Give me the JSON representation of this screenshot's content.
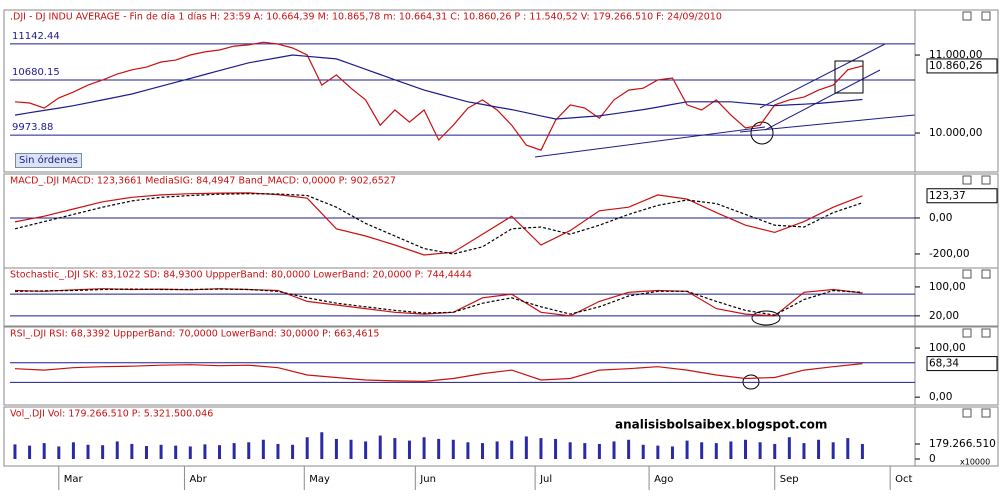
{
  "button": "Sin órdenes",
  "watermark": "analisisbolsaibex.blogspot.com",
  "chart_data": [
    {
      "type": "line",
      "title": ".DJI - DJ INDU AVERAGE - Fin de día 1 días H: 23:59  A: 10.664,39  M: 10.865,78  m: 10.664,31  C: 10.860,26  P : 11.540,52  V: 179.266.510  F: 24/09/2010",
      "x": [
        0,
        1,
        2,
        3,
        4,
        5,
        6,
        7,
        8,
        9,
        10,
        11,
        12,
        13,
        14,
        15,
        16,
        17,
        18,
        19,
        20,
        21,
        22,
        23,
        24,
        25,
        26,
        27,
        28,
        29,
        30,
        31,
        32,
        33,
        34,
        35,
        36,
        37,
        38,
        39,
        40,
        41,
        42,
        43,
        44,
        45,
        46,
        47,
        48,
        49,
        50,
        51,
        52,
        53,
        54,
        55,
        56,
        57,
        58
      ],
      "xlim": [
        -0.34,
        61.6
      ],
      "ylim": [
        9526,
        11449
      ],
      "yticks": [
        {
          "value": 11000,
          "label": "11.000,00"
        },
        {
          "value": 10000,
          "label": "10.000,00"
        }
      ],
      "reference_lines": [
        11142.44,
        10680.15,
        9973.88
      ],
      "reference_color": "#1c1c8c",
      "last_label": "10.860,26",
      "series": [
        {
          "color": "#cc1010",
          "values": [
            10400,
            10385,
            10320,
            10450,
            10525,
            10615,
            10680,
            10755,
            10810,
            10845,
            10910,
            10935,
            11000,
            11040,
            11065,
            11115,
            11130,
            11165,
            11140,
            11090,
            11000,
            10615,
            10745,
            10575,
            10425,
            10100,
            10295,
            10140,
            10295,
            9910,
            10100,
            10320,
            10425,
            10295,
            10100,
            9845,
            9780,
            10165,
            10360,
            10320,
            10190,
            10425,
            10550,
            10575,
            10680,
            10705,
            10360,
            10295,
            10425,
            10230,
            10065,
            10100,
            10360,
            10425,
            10460,
            10550,
            10615,
            10810,
            10860.26
          ]
        },
        {
          "color": "#1c1c8c",
          "values": [
            10230,
            10260,
            10290,
            10320,
            10350,
            10387,
            10425,
            10462,
            10500,
            10550,
            10600,
            10650,
            10700,
            10750,
            10800,
            10850,
            10900,
            10933,
            10967,
            11000,
            10983,
            10967,
            10950,
            10883,
            10817,
            10750,
            10683,
            10617,
            10550,
            10500,
            10450,
            10400,
            10367,
            10333,
            10300,
            10260,
            10220,
            10180,
            10193,
            10207,
            10220,
            10247,
            10273,
            10300,
            10333,
            10367,
            10400,
            10400,
            10400,
            10400,
            10383,
            10367,
            10350,
            10360,
            10370,
            10380,
            10397,
            10413,
            10430
          ]
        }
      ]
    },
    {
      "type": "line",
      "title": "MACD_.DJI MACD: 123,3661  MediaSIG: 84,4947  Band_MACD: 0,0000  P: 902,6527",
      "x": [
        0,
        2,
        4,
        6,
        8,
        10,
        12,
        14,
        16,
        18,
        20,
        22,
        24,
        26,
        28,
        30,
        32,
        34,
        36,
        38,
        40,
        42,
        44,
        46,
        48,
        50,
        52,
        54,
        56,
        58
      ],
      "xlim": [
        -0.34,
        61.6
      ],
      "ylim": [
        -278,
        222
      ],
      "yticks": [
        {
          "value": 0,
          "label": "0,00"
        },
        {
          "value": -200,
          "label": "-200,00"
        }
      ],
      "bands": [
        0
      ],
      "band_color": "#1c1c8c",
      "last_label": "123,37",
      "series": [
        {
          "color": "#cc1010",
          "values": [
            -22,
            10,
            50,
            90,
            115,
            128,
            135,
            138,
            139,
            130,
            110,
            -60,
            -100,
            -150,
            -206,
            -190,
            -90,
            10,
            -150,
            -70,
            40,
            60,
            128,
            105,
            30,
            -40,
            -80,
            -20,
            60,
            123.37
          ]
        },
        {
          "color": "#000000",
          "dash": true,
          "values": [
            -60,
            -20,
            20,
            60,
            95,
            115,
            125,
            132,
            135,
            133,
            125,
            60,
            -30,
            -100,
            -170,
            -200,
            -160,
            -60,
            -50,
            -90,
            -40,
            20,
            70,
            100,
            80,
            20,
            -40,
            -50,
            30,
            84.49
          ]
        }
      ]
    },
    {
      "type": "line",
      "title": "Stochastic_.DJI SK: 83,1022  SD: 84,9300  UppperBand: 80,0000  LowerBand: 20,0000  P: 744,4444",
      "x": [
        0,
        2,
        4,
        6,
        8,
        10,
        12,
        14,
        16,
        18,
        20,
        22,
        24,
        26,
        28,
        30,
        32,
        34,
        36,
        38,
        40,
        42,
        44,
        46,
        48,
        50,
        52,
        54,
        56,
        58
      ],
      "xlim": [
        -0.34,
        61.6
      ],
      "ylim": [
        -8,
        144
      ],
      "yticks": [
        {
          "value": 100,
          "label": "100,00"
        },
        {
          "value": 20,
          "label": "20,00"
        }
      ],
      "bands": [
        80,
        20
      ],
      "band_color": "#1c1c8c",
      "series": [
        {
          "color": "#cc1010",
          "values": [
            90,
            88,
            92,
            95,
            93,
            94,
            92,
            95,
            93,
            90,
            60,
            50,
            40,
            30,
            25,
            30,
            70,
            80,
            30,
            20,
            60,
            85,
            90,
            88,
            40,
            25,
            20,
            85,
            93,
            83.1
          ]
        },
        {
          "color": "#000000",
          "dash": true,
          "values": [
            88,
            89,
            90,
            93,
            94,
            93,
            93,
            94,
            93,
            88,
            70,
            55,
            45,
            35,
            28,
            30,
            55,
            70,
            45,
            25,
            45,
            75,
            88,
            88,
            60,
            35,
            22,
            65,
            90,
            84.93
          ]
        }
      ]
    },
    {
      "type": "line",
      "title": "RSI_.DJI RSI: 68,3392  UppperBand: 70,0000  LowerBand: 30,0000  P: 663,4615",
      "x": [
        0,
        2,
        4,
        6,
        8,
        10,
        12,
        14,
        16,
        18,
        20,
        22,
        24,
        26,
        28,
        30,
        32,
        34,
        36,
        38,
        40,
        42,
        44,
        46,
        48,
        50,
        52,
        54,
        56,
        58
      ],
      "xlim": [
        -0.34,
        61.6
      ],
      "ylim": [
        -16,
        134.7
      ],
      "yticks": [
        {
          "value": 100,
          "label": "100,00"
        },
        {
          "value": 0,
          "label": "0,00"
        }
      ],
      "bands": [
        70,
        30
      ],
      "band_color": "#1c1c8c",
      "last_label": "68,34",
      "series": [
        {
          "color": "#cc1010",
          "values": [
            58,
            55,
            60,
            62,
            63,
            65,
            66,
            64,
            65,
            60,
            45,
            40,
            35,
            33,
            32,
            38,
            48,
            55,
            35,
            38,
            55,
            58,
            62,
            55,
            45,
            38,
            40,
            55,
            62,
            68.34
          ]
        }
      ]
    },
    {
      "type": "bar",
      "title": "Vol_.DJI Vol: 179.266.510  P: 5.321.500.046",
      "x": [
        0,
        1,
        2,
        3,
        4,
        5,
        6,
        7,
        8,
        9,
        10,
        11,
        12,
        13,
        14,
        15,
        16,
        17,
        18,
        19,
        20,
        21,
        22,
        23,
        24,
        25,
        26,
        27,
        28,
        29,
        30,
        31,
        32,
        33,
        34,
        35,
        36,
        37,
        38,
        39,
        40,
        41,
        42,
        43,
        44,
        45,
        46,
        47,
        48,
        49,
        50,
        51,
        52,
        53,
        54,
        55,
        56,
        57,
        58
      ],
      "xlim": [
        -0.34,
        61.6
      ],
      "ylim": [
        0,
        610000000
      ],
      "yticks": [
        0,
        {
          "value": 179266510,
          "label": "179.266.510"
        }
      ],
      "unit": "x10000",
      "color": "#2a2aa8",
      "values": [
        175000000,
        160000000,
        190000000,
        150000000,
        200000000,
        170000000,
        165000000,
        210000000,
        180000000,
        155000000,
        170000000,
        160000000,
        150000000,
        175000000,
        165000000,
        190000000,
        200000000,
        230000000,
        180000000,
        170000000,
        260000000,
        320000000,
        240000000,
        230000000,
        210000000,
        280000000,
        250000000,
        220000000,
        260000000,
        240000000,
        230000000,
        200000000,
        190000000,
        210000000,
        220000000,
        270000000,
        250000000,
        240000000,
        200000000,
        190000000,
        180000000,
        210000000,
        230000000,
        170000000,
        160000000,
        150000000,
        220000000,
        200000000,
        190000000,
        210000000,
        230000000,
        200000000,
        180000000,
        260000000,
        190000000,
        230000000,
        200000000,
        250000000,
        179266510
      ],
      "xticks": [
        {
          "value": 3.0,
          "label": "Mar"
        },
        {
          "value": 11.6,
          "label": "Abr"
        },
        {
          "value": 19.8,
          "label": "May"
        },
        {
          "value": 27.4,
          "label": "Jun"
        },
        {
          "value": 35.6,
          "label": "Jul"
        },
        {
          "value": 43.4,
          "label": "Ago"
        },
        {
          "value": 52.0,
          "label": "Sep"
        },
        {
          "value": 59.9,
          "label": "Oct"
        }
      ]
    }
  ]
}
